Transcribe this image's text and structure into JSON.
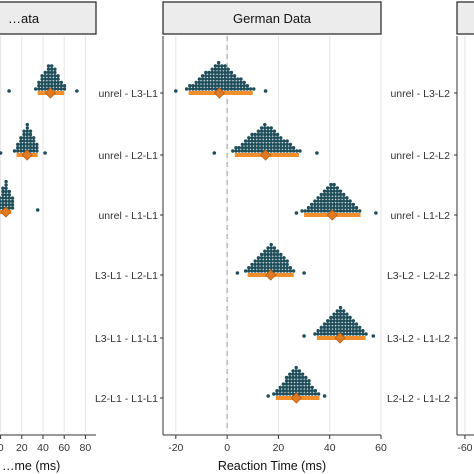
{
  "colors": {
    "dot": "#1f4e5a",
    "interval": "#f28e2b",
    "point": "#e07b23",
    "strip_fill": "#ececec",
    "strip_border": "#222222",
    "grid": "#e6e6e6",
    "axis_text": "#333333",
    "zero_line": "#999999"
  },
  "chart_data": [
    {
      "type": "dotplot",
      "title": "…ata",
      "xlabel": "…me (ms)",
      "xlim": [
        -10,
        90
      ],
      "xticks": [
        0,
        20,
        40,
        60,
        80
      ],
      "tick_labels": [
        "0",
        "20",
        "40",
        "60",
        "80"
      ],
      "categories": [
        "",
        "",
        ""
      ],
      "series": [
        {
          "center": 47,
          "interval": [
            35,
            60
          ],
          "tails": [
            8,
            72
          ]
        },
        {
          "center": 25,
          "interval": [
            15,
            35
          ],
          "tails": [
            0,
            42
          ]
        },
        {
          "center": 5,
          "interval": [
            -5,
            10
          ],
          "tails": [
            -10,
            35
          ]
        }
      ]
    },
    {
      "type": "dotplot",
      "title": "German Data",
      "xlabel": "Reaction Time (ms)",
      "xlim": [
        -25,
        60
      ],
      "xticks": [
        -20,
        0,
        20,
        40,
        60
      ],
      "tick_labels": [
        "-20",
        "0",
        "20",
        "40",
        "60"
      ],
      "zero_line": 0,
      "categories": [
        "unrel - L3-L1",
        "unrel - L2-L1",
        "unrel - L1-L1",
        "L3-L1 - L2-L1",
        "L3-L1 - L1-L1",
        "L2-L1 - L1-L1"
      ],
      "series": [
        {
          "center": -3,
          "interval": [
            -15,
            10
          ],
          "tails": [
            -20,
            15
          ]
        },
        {
          "center": 15,
          "interval": [
            3,
            28
          ],
          "tails": [
            -5,
            35
          ]
        },
        {
          "center": 41,
          "interval": [
            30,
            52
          ],
          "tails": [
            27,
            58
          ]
        },
        {
          "center": 17,
          "interval": [
            8,
            26
          ],
          "tails": [
            4,
            30
          ]
        },
        {
          "center": 44,
          "interval": [
            35,
            54
          ],
          "tails": [
            30,
            57
          ]
        },
        {
          "center": 27,
          "interval": [
            19,
            36
          ],
          "tails": [
            16,
            38
          ]
        }
      ]
    },
    {
      "type": "dotplot",
      "title": "",
      "xlabel": "",
      "xlim": [
        -65,
        0
      ],
      "xticks": [
        -60
      ],
      "tick_labels": [
        "-60"
      ],
      "categories": [
        "unrel - L3-L2",
        "unrel - L2-L2",
        "unrel - L1-L2",
        "L3-L2 - L2-L2",
        "L3-L2 - L1-L2",
        "L2-L2 - L1-L2"
      ],
      "series": []
    }
  ]
}
